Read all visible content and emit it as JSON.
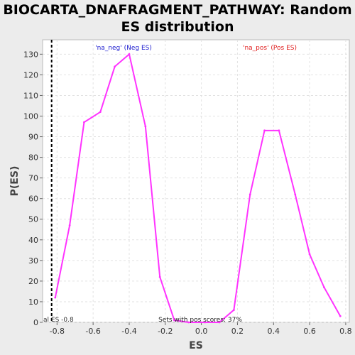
{
  "chart_data": {
    "type": "line",
    "title_line1": "BIOCARTA_DNAFRAGMENT_PATHWAY: Random",
    "title_line2": "ES distribution",
    "xlabel": "ES",
    "ylabel": "P(ES)",
    "xlim": [
      -0.88,
      0.82
    ],
    "ylim": [
      0,
      137
    ],
    "xticks": [
      -0.8,
      -0.6,
      -0.4,
      -0.2,
      0.0,
      0.2,
      0.4,
      0.6,
      0.8
    ],
    "xtick_labels": [
      "-0.8",
      "-0.6",
      "-0.4",
      "-0.2",
      "0.0",
      "0.2",
      "0.4",
      "0.6",
      "0.8"
    ],
    "yticks": [
      0,
      10,
      20,
      30,
      40,
      50,
      60,
      70,
      80,
      90,
      100,
      110,
      120,
      130
    ],
    "grid": true,
    "series": [
      {
        "color": "#ff33ff",
        "x": [
          -0.81,
          -0.73,
          -0.65,
          -0.56,
          -0.48,
          -0.4,
          -0.31,
          -0.23,
          -0.15,
          -0.07,
          0.02,
          0.1,
          0.18,
          0.27,
          0.35,
          0.43,
          0.52,
          0.6,
          0.68,
          0.77
        ],
        "y": [
          12,
          47,
          97,
          102,
          124,
          130,
          95,
          22,
          1,
          0,
          0,
          0,
          6,
          62,
          93,
          93,
          62,
          33,
          17,
          3
        ]
      }
    ],
    "actual_es": -0.83,
    "annotations": {
      "neg_label": "'na_neg' (Neg ES)",
      "pos_label": "'na_pos' (Pos ES)",
      "neg_color": "#2020d0",
      "pos_color": "#e02020",
      "es_label": "al ES -0.8",
      "pos_scores": "Sets with pos scores: 37%"
    }
  }
}
